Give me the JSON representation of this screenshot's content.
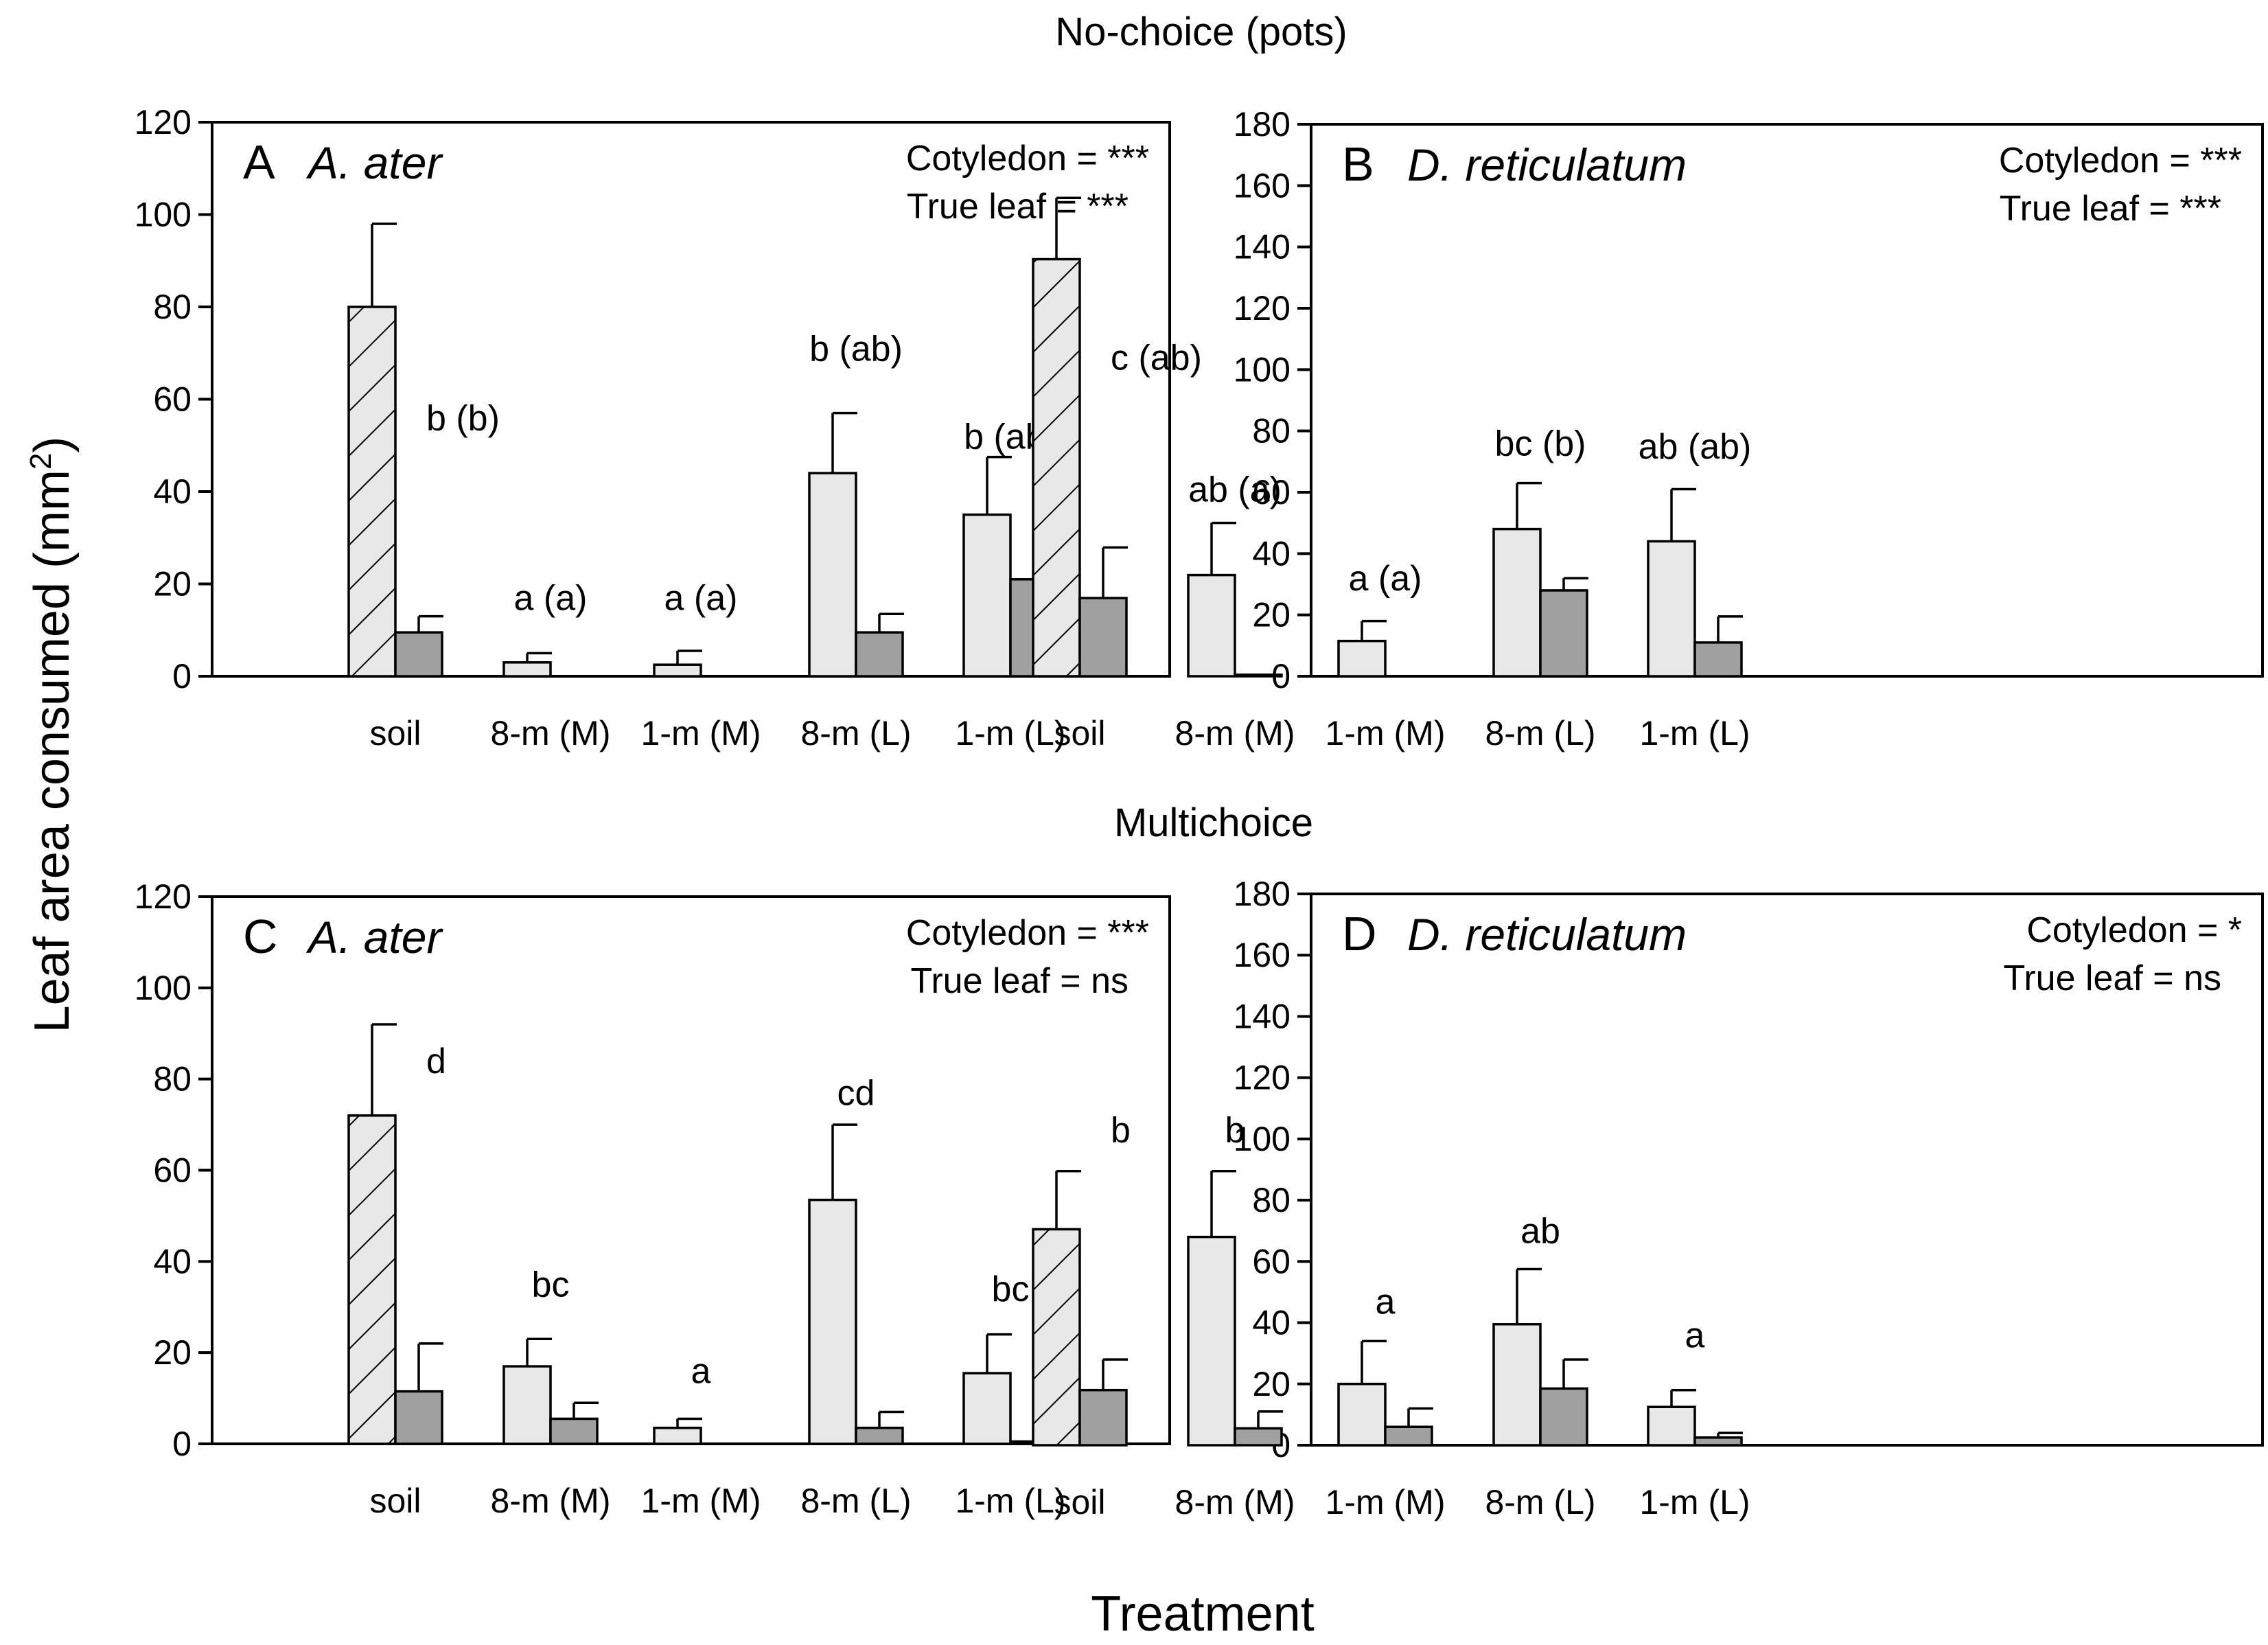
{
  "figure": {
    "section_titles": {
      "top": "No-choice (pots)",
      "middle": "Multichoice"
    },
    "y_axis_label": "Leaf area consumed (mm",
    "y_axis_label_sup": "2",
    "y_axis_label_end": ")",
    "x_axis_label": "Treatment",
    "colors": {
      "cotyledon": "#e8e8e8",
      "true_leaf": "#a0a0a0",
      "soil_hatch": "#000000",
      "axis": "#000000"
    }
  },
  "chart_data": [
    {
      "id": "A",
      "type": "bar",
      "panel_letter": "A",
      "species": "A. ater",
      "sig_cotyledon": "Cotyledon = ***",
      "sig_true_leaf": "True leaf = ***",
      "categories": [
        "soil",
        "8-m (M)",
        "1-m (M)",
        "8-m (L)",
        "1-m (L)"
      ],
      "ylim": [
        0,
        120
      ],
      "yticks": [
        0,
        20,
        40,
        60,
        80,
        100,
        120
      ],
      "series": [
        {
          "name": "Cotyledon",
          "values": [
            80,
            3,
            2.5,
            44,
            35
          ],
          "errors": [
            18,
            2,
            3,
            13,
            12.5
          ]
        },
        {
          "name": "True leaf",
          "values": [
            9.5,
            0,
            0,
            9.5,
            21
          ],
          "errors": [
            3.5,
            0,
            0,
            4,
            10.5
          ]
        }
      ],
      "letters": [
        "b (b)",
        "a (a)",
        "a (a)",
        "b (ab)",
        "b (ab)"
      ],
      "letter_y": [
        56,
        17,
        17,
        71,
        52
      ]
    },
    {
      "id": "B",
      "type": "bar",
      "panel_letter": "B",
      "species": "D. reticulatum",
      "sig_cotyledon": "Cotyledon = ***",
      "sig_true_leaf": "True leaf = ***",
      "categories": [
        "soil",
        "8-m (M)",
        "1-m (M)",
        "8-m (L)",
        "1-m (L)"
      ],
      "ylim": [
        0,
        180
      ],
      "yticks": [
        0,
        20,
        40,
        60,
        80,
        100,
        120,
        140,
        160,
        180
      ],
      "series": [
        {
          "name": "Cotyledon",
          "values": [
            136,
            33,
            11.5,
            48,
            44
          ],
          "errors": [
            20,
            17,
            6.5,
            15,
            17
          ]
        },
        {
          "name": "True leaf",
          "values": [
            25.5,
            0.5,
            0,
            28,
            11
          ],
          "errors": [
            16.5,
            0,
            0,
            4,
            8.5
          ]
        }
      ],
      "letters": [
        "c (ab)",
        "ab (a)",
        "a (a)",
        "bc (b)",
        "ab (ab)"
      ],
      "letter_y": [
        104,
        61,
        32,
        76,
        75
      ]
    },
    {
      "id": "C",
      "type": "bar",
      "panel_letter": "C",
      "species": "A. ater",
      "sig_cotyledon": "Cotyledon = ***",
      "sig_true_leaf": "True leaf = ns",
      "categories": [
        "soil",
        "8-m (M)",
        "1-m (M)",
        "8-m (L)",
        "1-m (L)"
      ],
      "ylim": [
        0,
        120
      ],
      "yticks": [
        0,
        20,
        40,
        60,
        80,
        100,
        120
      ],
      "series": [
        {
          "name": "Cotyledon",
          "values": [
            72,
            17,
            3.5,
            53.5,
            15.5
          ],
          "errors": [
            20,
            6,
            2,
            16.5,
            8.5
          ]
        },
        {
          "name": "True leaf",
          "values": [
            11.5,
            5.5,
            0,
            3.5,
            0.5
          ],
          "errors": [
            10.5,
            3.5,
            0,
            3.5,
            0
          ]
        }
      ],
      "letters": [
        "d",
        "bc",
        "a",
        "cd",
        "bc"
      ],
      "letter_y": [
        84,
        35,
        16,
        77,
        34
      ]
    },
    {
      "id": "D",
      "type": "bar",
      "panel_letter": "D",
      "species": "D. reticulatum",
      "sig_cotyledon": "Cotyledon = *",
      "sig_true_leaf": "True leaf = ns",
      "categories": [
        "soil",
        "8-m (M)",
        "1-m (M)",
        "8-m (L)",
        "1-m (L)"
      ],
      "ylim": [
        0,
        180
      ],
      "yticks": [
        0,
        20,
        40,
        60,
        80,
        100,
        120,
        140,
        160,
        180
      ],
      "series": [
        {
          "name": "Cotyledon",
          "values": [
            70.5,
            68,
            20,
            39.5,
            12.5
          ],
          "errors": [
            19,
            21.5,
            14,
            18,
            5.5
          ]
        },
        {
          "name": "True leaf",
          "values": [
            18,
            5.5,
            6,
            18.5,
            2.5
          ],
          "errors": [
            10,
            5.5,
            6,
            9.5,
            1.5
          ]
        }
      ],
      "letters": [
        "b",
        "b",
        "a",
        "ab",
        "a"
      ],
      "letter_y": [
        103,
        103,
        47,
        70,
        36
      ]
    }
  ]
}
